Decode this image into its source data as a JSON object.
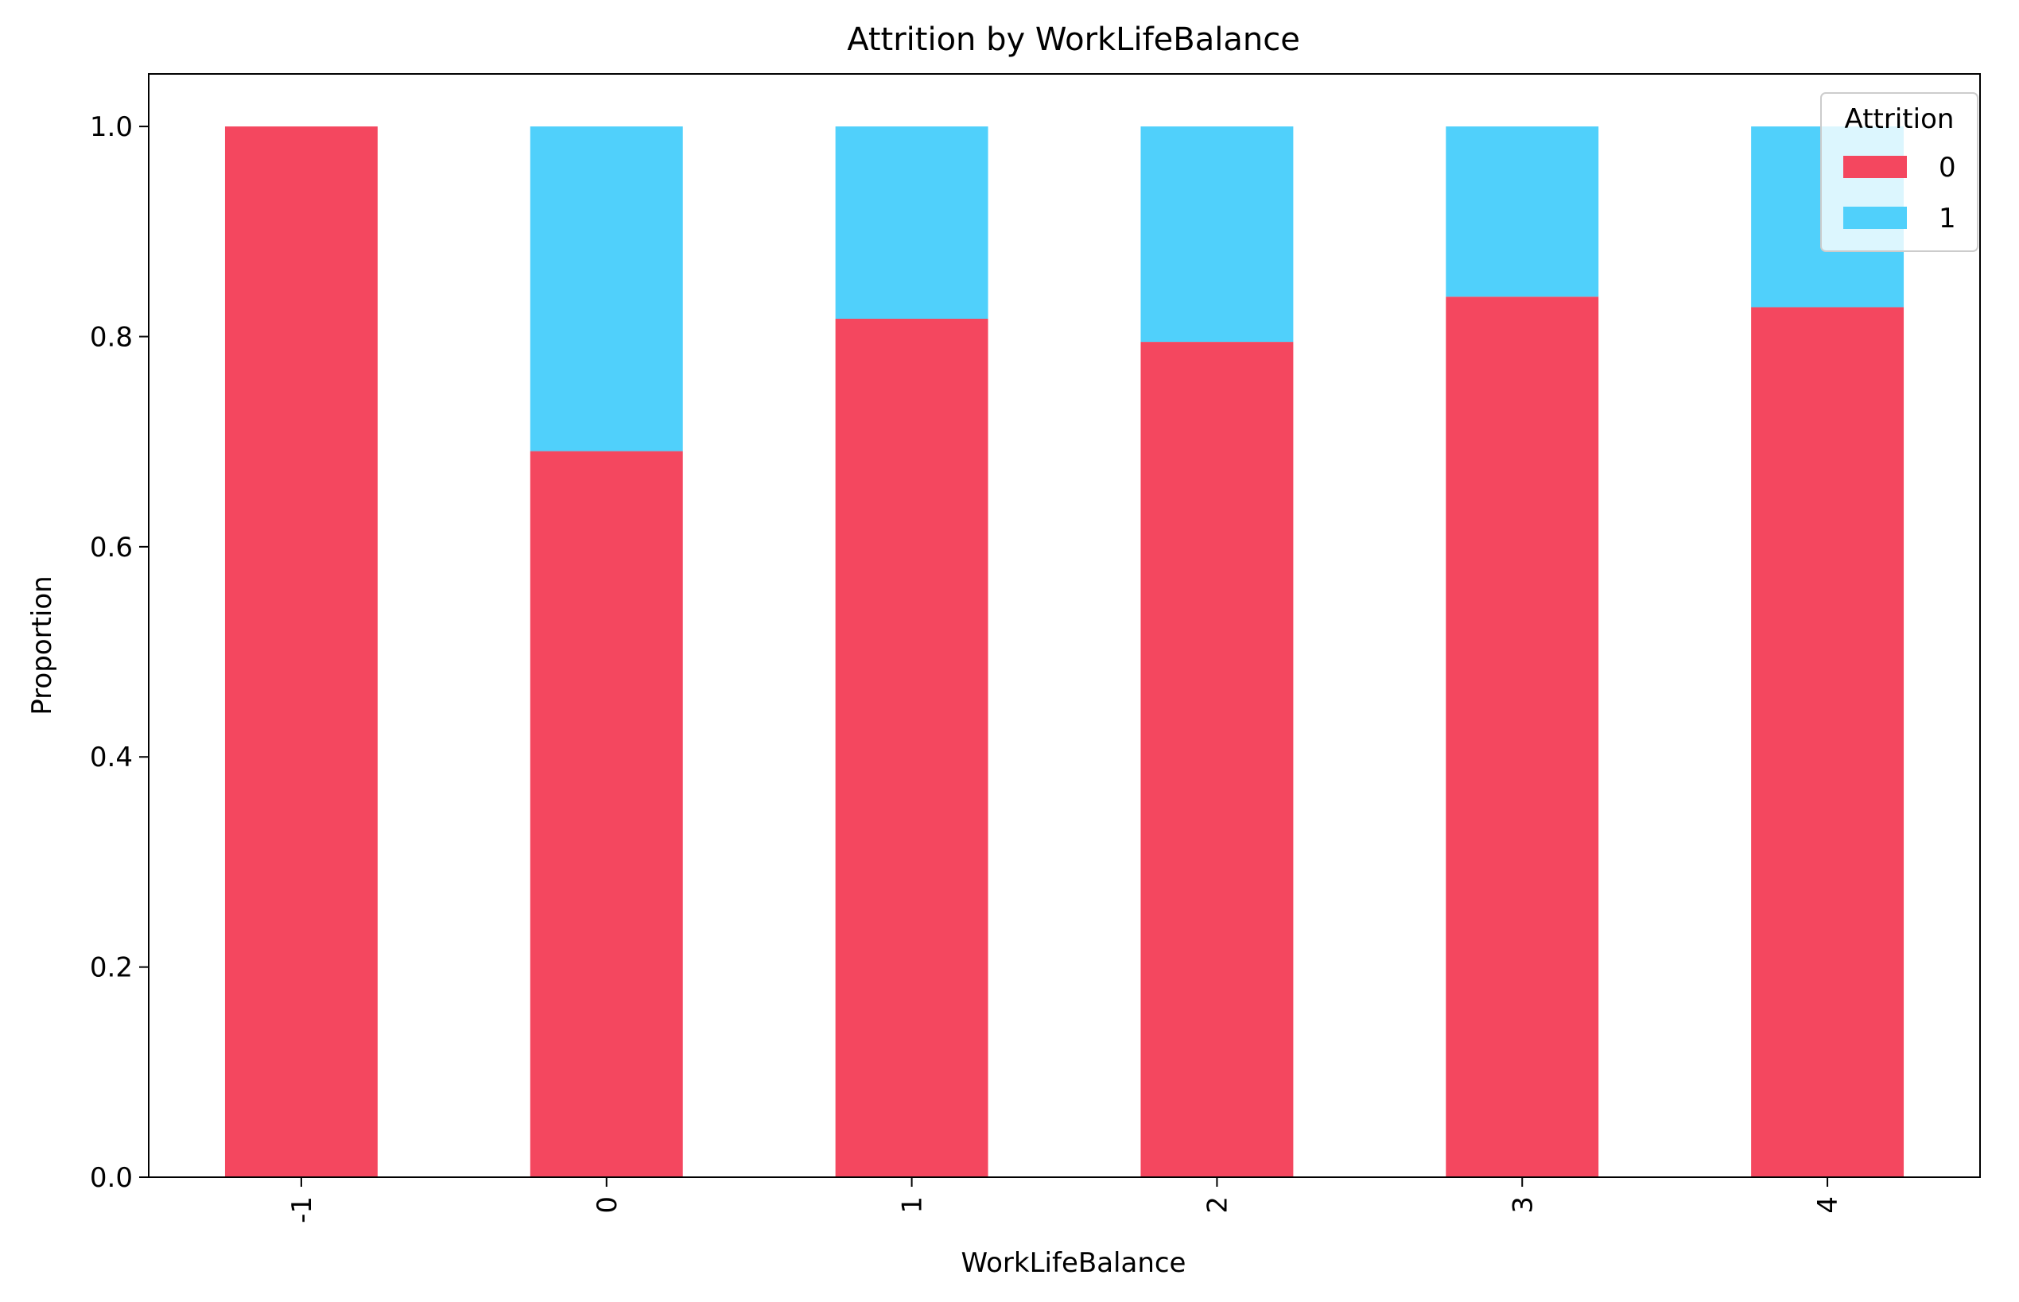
{
  "chart_data": {
    "type": "bar",
    "stacked": true,
    "title": "Attrition by WorkLifeBalance",
    "xlabel": "WorkLifeBalance",
    "ylabel": "Proportion",
    "categories": [
      "-1",
      "0",
      "1",
      "2",
      "3",
      "4"
    ],
    "series": [
      {
        "name": "0",
        "color": "#f4475f",
        "values": [
          1.0,
          0.691,
          0.817,
          0.795,
          0.838,
          0.828
        ]
      },
      {
        "name": "1",
        "color": "#50d0fb",
        "values": [
          0.0,
          0.309,
          0.183,
          0.205,
          0.162,
          0.172
        ]
      }
    ],
    "ylim": [
      0,
      1.05
    ],
    "yticks": [
      "0.0",
      "0.2",
      "0.4",
      "0.6",
      "0.8",
      "1.0"
    ],
    "ytick_values": [
      0,
      0.2,
      0.4,
      0.6,
      0.8,
      1.0
    ],
    "xtick_rotation": "vertical",
    "grid": false,
    "legend": {
      "title": "Attrition",
      "placement": "top-right"
    }
  }
}
